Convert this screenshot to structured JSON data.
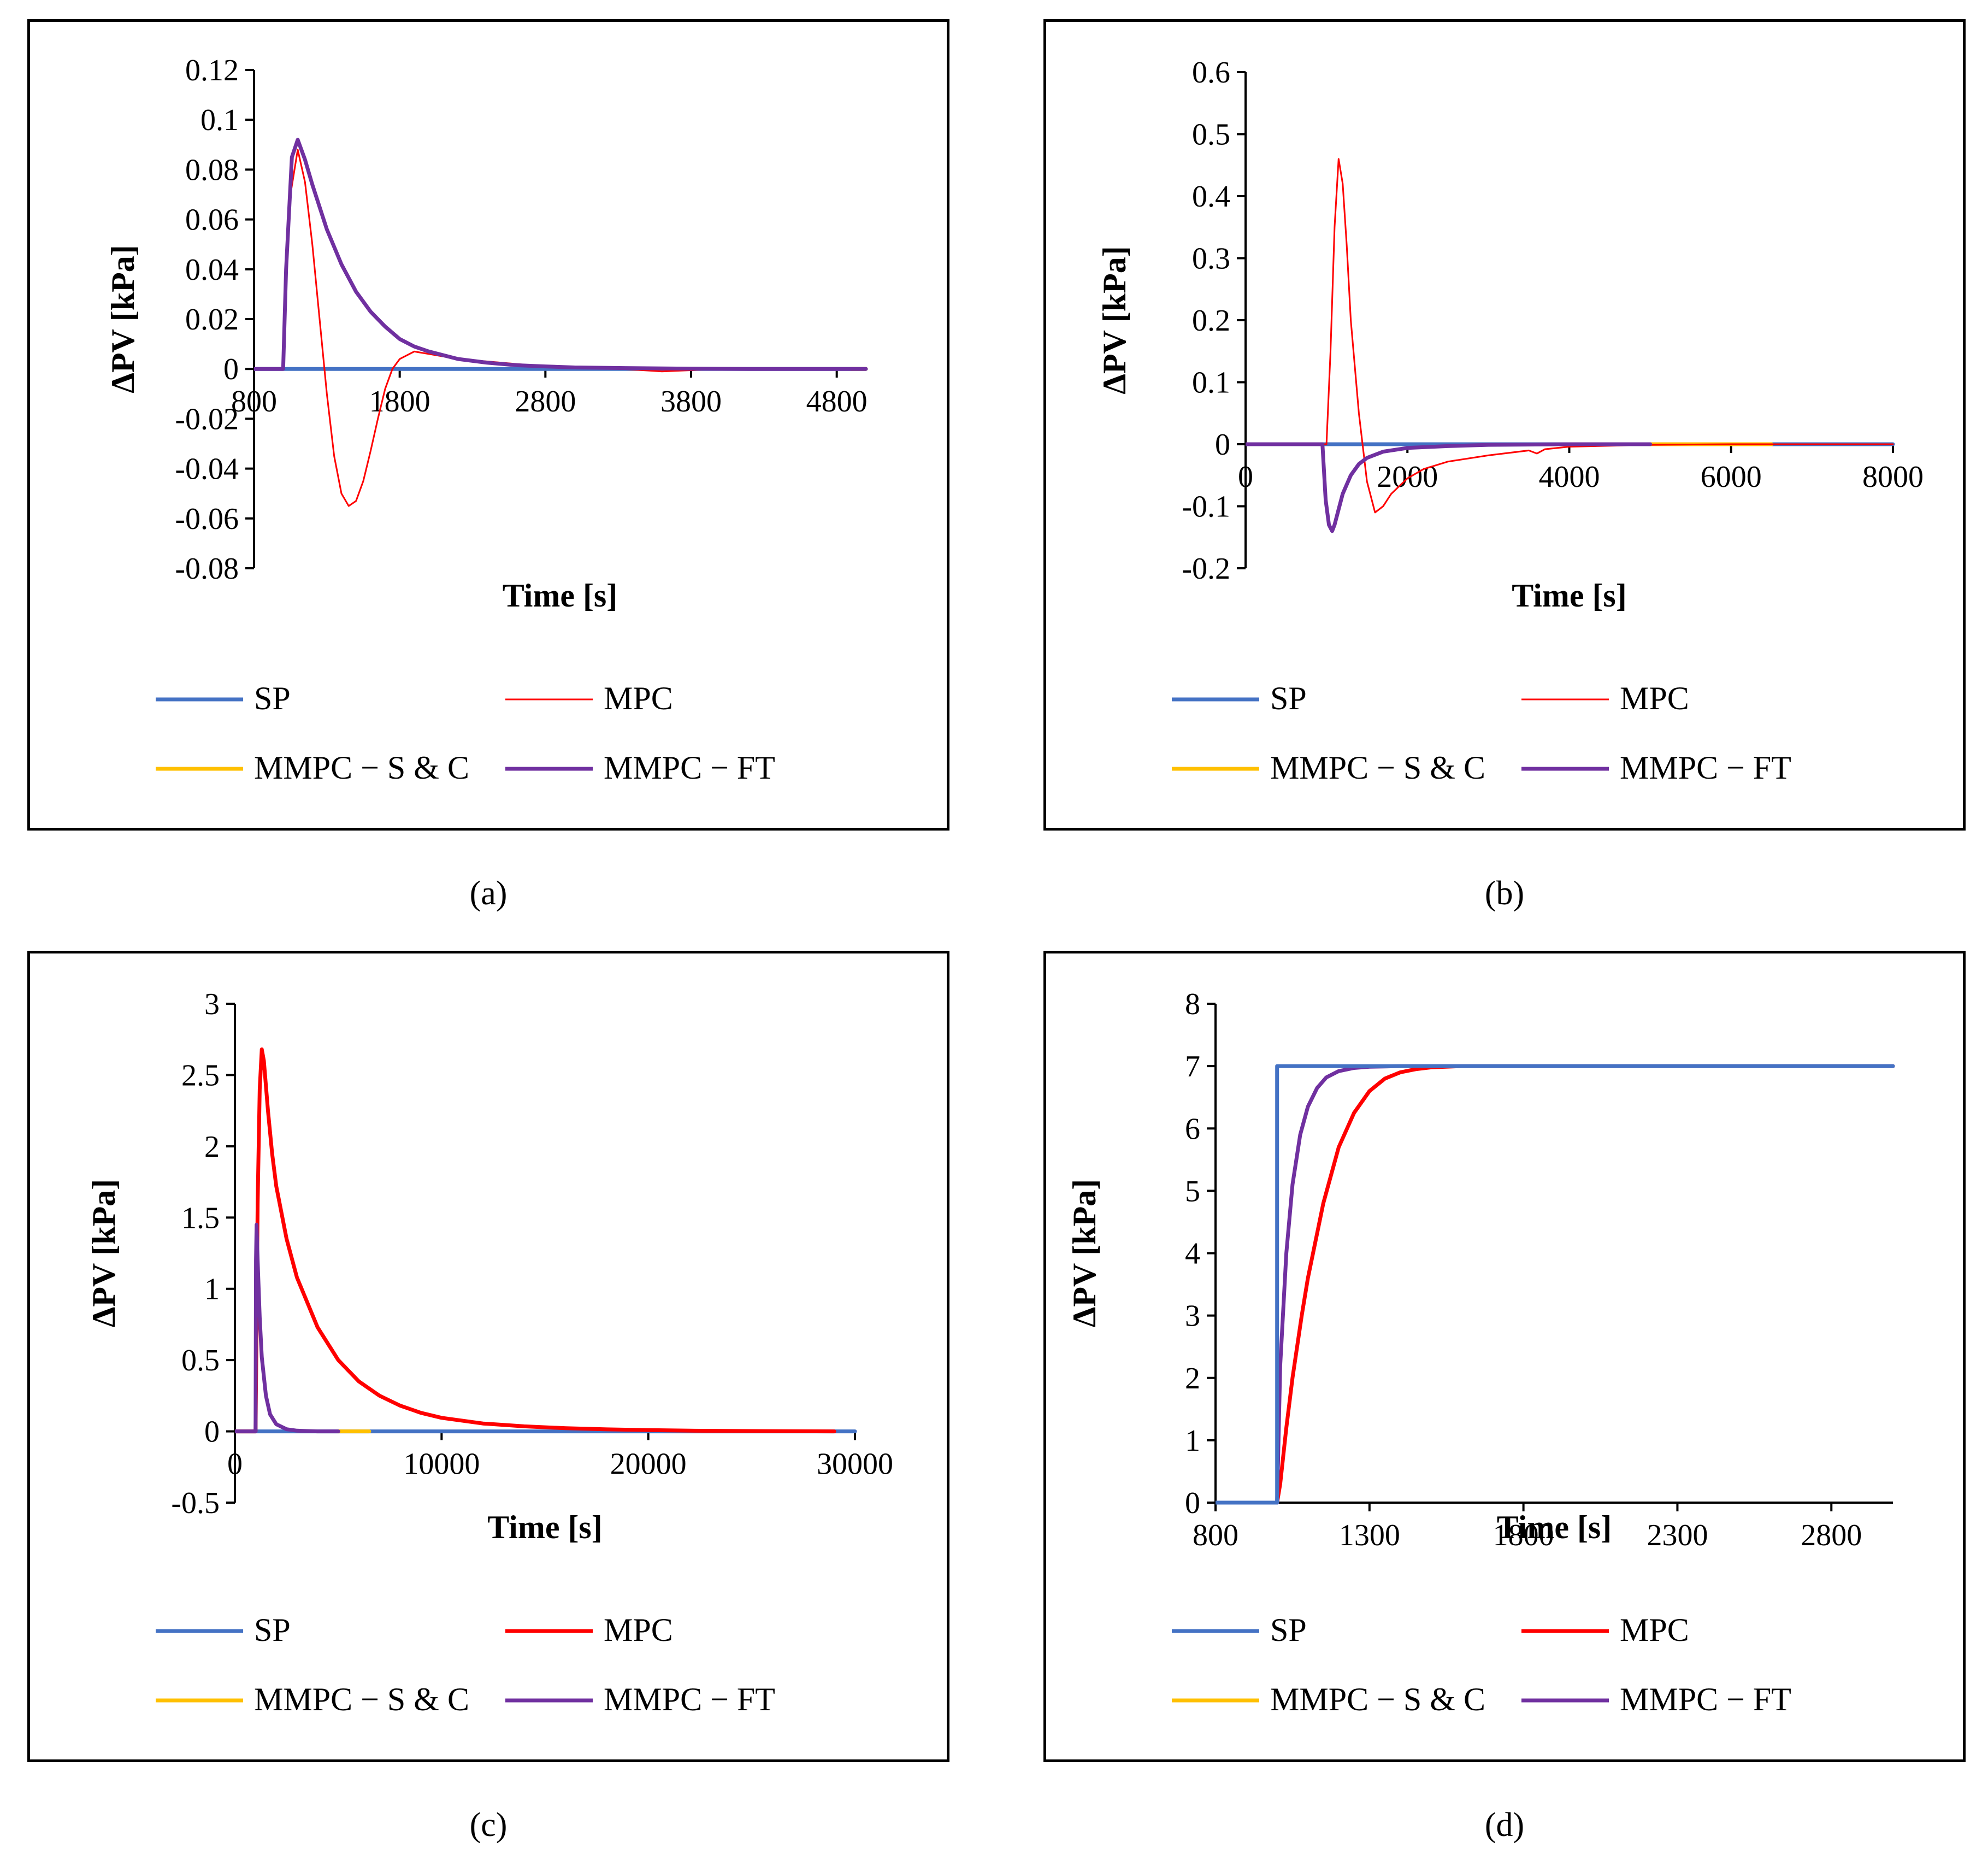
{
  "colors": {
    "SP": "#4472C4",
    "MPC": "#FF0000",
    "MMPC-SC": "#FFC000",
    "MMPC-FT": "#7030A0"
  },
  "chart_data": [
    {
      "id": "a",
      "caption": "(a)",
      "type": "line",
      "xlabel": "Time [s]",
      "ylabel": "ΔPV [kPa]",
      "xlim": [
        800,
        5000
      ],
      "ylim": [
        -0.08,
        0.12
      ],
      "xticks": [
        "800",
        "1800",
        "2800",
        "3800",
        "4800"
      ],
      "yticks": [
        "-0.08",
        "-0.06",
        "-0.04",
        "-0.02",
        "0",
        "0.02",
        "0.04",
        "0.06",
        "0.08",
        "0.1",
        "0.12"
      ],
      "legend": [
        "SP",
        "MPC",
        "MMPC − S & C",
        "MMPC − FT"
      ],
      "series": [
        {
          "name": "SP",
          "color": "#4472C4",
          "x": [
            800,
            5000
          ],
          "y": [
            0,
            0
          ]
        },
        {
          "name": "MMPC − S & C",
          "color": "#FFC000",
          "x": [
            4900,
            5000
          ],
          "y": [
            0,
            0
          ]
        },
        {
          "name": "MPC",
          "color": "#FF0000",
          "x": [
            800,
            1000,
            1010,
            1050,
            1100,
            1150,
            1200,
            1250,
            1300,
            1350,
            1400,
            1450,
            1500,
            1550,
            1600,
            1650,
            1700,
            1750,
            1800,
            1900,
            2000,
            2100,
            2200,
            2400,
            2600,
            2800,
            3200,
            3600,
            4000,
            4400,
            4800,
            5000
          ],
          "y": [
            0,
            0,
            0.03,
            0.07,
            0.088,
            0.075,
            0.05,
            0.02,
            -0.01,
            -0.035,
            -0.05,
            -0.055,
            -0.053,
            -0.045,
            -0.033,
            -0.02,
            -0.008,
            0.0,
            0.004,
            0.007,
            0.006,
            0.005,
            0.004,
            0.003,
            0.002,
            0.001,
            0.0005,
            -0.001,
            0.0,
            0.0,
            0.0,
            0.0
          ]
        },
        {
          "name": "MMPC − FT",
          "color": "#7030A0",
          "x": [
            800,
            1000,
            1020,
            1060,
            1100,
            1150,
            1200,
            1300,
            1400,
            1500,
            1600,
            1700,
            1800,
            1900,
            2000,
            2200,
            2400,
            2600,
            2800,
            3000,
            3400,
            3800,
            4200,
            4600,
            5000
          ],
          "y": [
            0,
            0,
            0.04,
            0.085,
            0.092,
            0.084,
            0.074,
            0.056,
            0.042,
            0.031,
            0.023,
            0.017,
            0.012,
            0.009,
            0.007,
            0.004,
            0.0025,
            0.0015,
            0.001,
            0.0006,
            0.0003,
            0.0001,
            0.0,
            0.0,
            0.0
          ]
        }
      ]
    },
    {
      "id": "b",
      "caption": "(b)",
      "type": "line",
      "xlabel": "Time [s]",
      "ylabel": "ΔPV [kPa]",
      "xlim": [
        0,
        8000
      ],
      "ylim": [
        -0.2,
        0.6
      ],
      "xticks": [
        "0",
        "2000",
        "4000",
        "6000",
        "8000"
      ],
      "yticks": [
        "-0.2",
        "-0.1",
        "0",
        "0.1",
        "0.2",
        "0.3",
        "0.4",
        "0.5",
        "0.6"
      ],
      "legend": [
        "SP",
        "MPC",
        "MMPC − S & C",
        "MMPC − FT"
      ],
      "series": [
        {
          "name": "SP",
          "color": "#4472C4",
          "x": [
            0,
            8000
          ],
          "y": [
            0,
            0
          ]
        },
        {
          "name": "MMPC − S & C",
          "color": "#FFC000",
          "x": [
            5000,
            6500
          ],
          "y": [
            0,
            0
          ]
        },
        {
          "name": "MPC",
          "color": "#FF0000",
          "x": [
            0,
            1000,
            1050,
            1100,
            1150,
            1200,
            1250,
            1300,
            1400,
            1500,
            1600,
            1700,
            1800,
            2000,
            2200,
            2500,
            3000,
            3500,
            3600,
            3700,
            4000,
            5000,
            6000,
            8000
          ],
          "y": [
            0,
            0,
            0.15,
            0.35,
            0.46,
            0.42,
            0.32,
            0.2,
            0.05,
            -0.06,
            -0.11,
            -0.1,
            -0.08,
            -0.055,
            -0.04,
            -0.028,
            -0.018,
            -0.01,
            -0.015,
            -0.008,
            -0.004,
            -0.001,
            0,
            0
          ]
        },
        {
          "name": "MMPC − FT",
          "color": "#7030A0",
          "x": [
            0,
            950,
            990,
            1030,
            1070,
            1100,
            1150,
            1200,
            1300,
            1400,
            1500,
            1700,
            2000,
            2500,
            3000,
            4000,
            5000
          ],
          "y": [
            0,
            0,
            -0.09,
            -0.13,
            -0.14,
            -0.13,
            -0.105,
            -0.08,
            -0.05,
            -0.032,
            -0.022,
            -0.012,
            -0.006,
            -0.003,
            -0.001,
            0,
            0
          ]
        }
      ]
    },
    {
      "id": "c",
      "caption": "(c)",
      "type": "line",
      "xlabel": "Time [s]",
      "ylabel": "ΔPV [kPa]",
      "xlim": [
        0,
        30000
      ],
      "ylim": [
        -0.5,
        3
      ],
      "xticks": [
        "0",
        "10000",
        "20000",
        "30000"
      ],
      "yticks": [
        "-0.5",
        "0",
        "0.5",
        "1",
        "1.5",
        "2",
        "2.5",
        "3"
      ],
      "legend": [
        "SP",
        "MPC",
        "MMPC − S & C",
        "MMPC − FT"
      ],
      "series": [
        {
          "name": "SP",
          "color": "#4472C4",
          "x": [
            0,
            30000
          ],
          "y": [
            0,
            0
          ]
        },
        {
          "name": "MMPC − S & C",
          "color": "#FFC000",
          "x": [
            5000,
            6500
          ],
          "y": [
            0,
            0
          ]
        },
        {
          "name": "MPC",
          "color": "#FF0000",
          "x": [
            0,
            1000,
            1100,
            1200,
            1300,
            1400,
            1600,
            1800,
            2000,
            2500,
            3000,
            4000,
            5000,
            6000,
            7000,
            8000,
            9000,
            10000,
            12000,
            14000,
            16000,
            18000,
            20000,
            22000,
            25000,
            29000
          ],
          "y": [
            0,
            0,
            1.6,
            2.4,
            2.68,
            2.6,
            2.25,
            1.95,
            1.72,
            1.35,
            1.08,
            0.73,
            0.5,
            0.35,
            0.25,
            0.18,
            0.13,
            0.095,
            0.055,
            0.035,
            0.022,
            0.014,
            0.009,
            0.005,
            0.002,
            0
          ]
        },
        {
          "name": "MMPC − FT",
          "color": "#7030A0",
          "x": [
            0,
            1000,
            1020,
            1050,
            1100,
            1200,
            1300,
            1500,
            1700,
            2000,
            2500,
            3000,
            3500,
            4000,
            5000
          ],
          "y": [
            0,
            0,
            1.2,
            1.45,
            1.2,
            0.8,
            0.52,
            0.25,
            0.12,
            0.05,
            0.015,
            0.005,
            0.002,
            0,
            0
          ]
        }
      ]
    },
    {
      "id": "d",
      "caption": "(d)",
      "type": "line",
      "xlabel": "Time [s]",
      "ylabel": "ΔPV [kPa]",
      "xlim": [
        800,
        3000
      ],
      "ylim": [
        0,
        8
      ],
      "xticks": [
        "800",
        "1300",
        "1800",
        "2300",
        "2800"
      ],
      "yticks": [
        "0",
        "1",
        "2",
        "3",
        "4",
        "5",
        "6",
        "7",
        "8"
      ],
      "legend": [
        "SP",
        "MPC",
        "MMPC − S & C",
        "MMPC − FT"
      ],
      "series": [
        {
          "name": "MPC",
          "color": "#FF0000",
          "x": [
            800,
            1000,
            1010,
            1030,
            1050,
            1080,
            1100,
            1150,
            1200,
            1250,
            1300,
            1350,
            1400,
            1450,
            1500,
            1600,
            1700,
            1800,
            2000,
            3000
          ],
          "y": [
            0,
            0,
            0.3,
            1.2,
            2.0,
            3.0,
            3.6,
            4.8,
            5.7,
            6.25,
            6.6,
            6.8,
            6.9,
            6.95,
            6.98,
            7.0,
            7.0,
            7.0,
            7.0,
            7.0
          ]
        },
        {
          "name": "MMPC − FT",
          "color": "#7030A0",
          "x": [
            800,
            1000,
            1010,
            1030,
            1050,
            1075,
            1100,
            1130,
            1160,
            1200,
            1250,
            1300,
            1400,
            1600,
            3000
          ],
          "y": [
            0,
            0,
            2.2,
            4.0,
            5.1,
            5.9,
            6.35,
            6.65,
            6.82,
            6.92,
            6.97,
            6.99,
            7.0,
            7.0,
            7.0
          ]
        },
        {
          "name": "SP",
          "color": "#4472C4",
          "x": [
            800,
            1000,
            1000,
            3000
          ],
          "y": [
            0,
            0,
            7,
            7
          ]
        }
      ]
    }
  ]
}
